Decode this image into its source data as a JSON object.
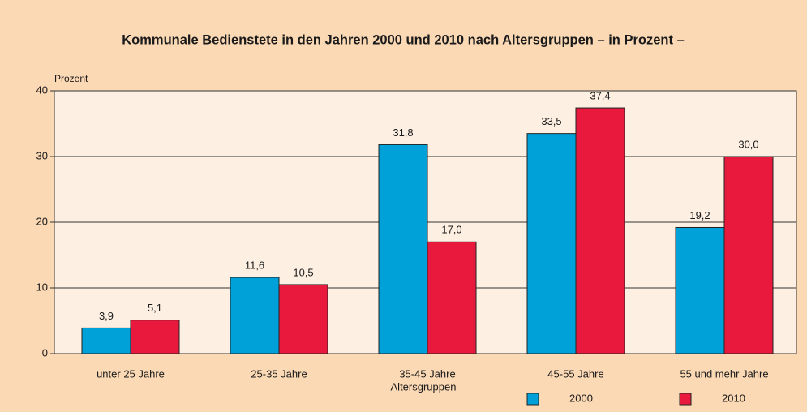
{
  "chart_data": {
    "type": "bar",
    "title": "Kommunale Bedienstete in den Jahren 2000 und 2010 nach Altersgruppen – in Prozent –",
    "y_label": "Prozent",
    "x_label": "Altersgruppen",
    "categories": [
      "unter 25 Jahre",
      "25-35 Jahre",
      "35-45 Jahre",
      "45-55 Jahre",
      "55 und mehr Jahre"
    ],
    "series": [
      {
        "name": "2000",
        "color": "#00a0d8",
        "values": [
          3.9,
          11.6,
          31.8,
          33.5,
          19.2
        ],
        "value_labels": [
          "3,9",
          "11,6",
          "31,8",
          "33,5",
          "19,2"
        ]
      },
      {
        "name": "2010",
        "color": "#e8193c",
        "values": [
          5.1,
          10.5,
          17.0,
          37.4,
          30.0
        ],
        "value_labels": [
          "5,1",
          "10,5",
          "17,0",
          "37,4",
          "30,0"
        ]
      }
    ],
    "ylim": [
      0,
      40
    ],
    "yticks": [
      0,
      10,
      20,
      30,
      40
    ],
    "grid": true,
    "legend": "bottom-right"
  }
}
